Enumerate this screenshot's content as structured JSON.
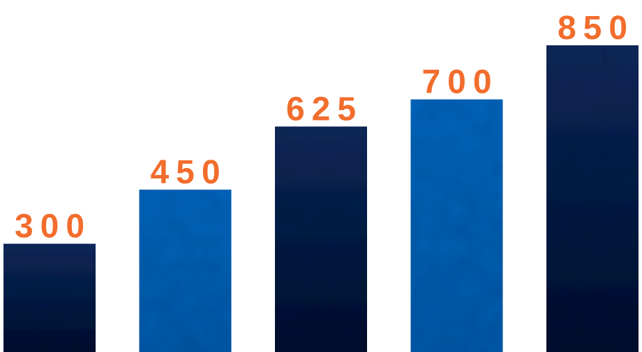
{
  "chart_data": {
    "type": "bar",
    "categories": [
      "",
      "",
      "",
      "",
      ""
    ],
    "values": [
      300,
      450,
      625,
      700,
      850
    ],
    "data_labels": [
      "300",
      "450",
      "625",
      "700",
      "850"
    ],
    "ylim": [
      0,
      850
    ],
    "grid": false,
    "legend": "none",
    "colors": {
      "bar_dark_top": "#142a5c",
      "bar_dark_bottom": "#0b1530",
      "bar_light_top": "#0a65bc",
      "bar_light_bottom": "#0759a8",
      "label": "#f26d2d",
      "background": "#ffffff"
    },
    "bar_color_pattern": [
      "dark",
      "light",
      "dark",
      "light",
      "dark"
    ]
  }
}
